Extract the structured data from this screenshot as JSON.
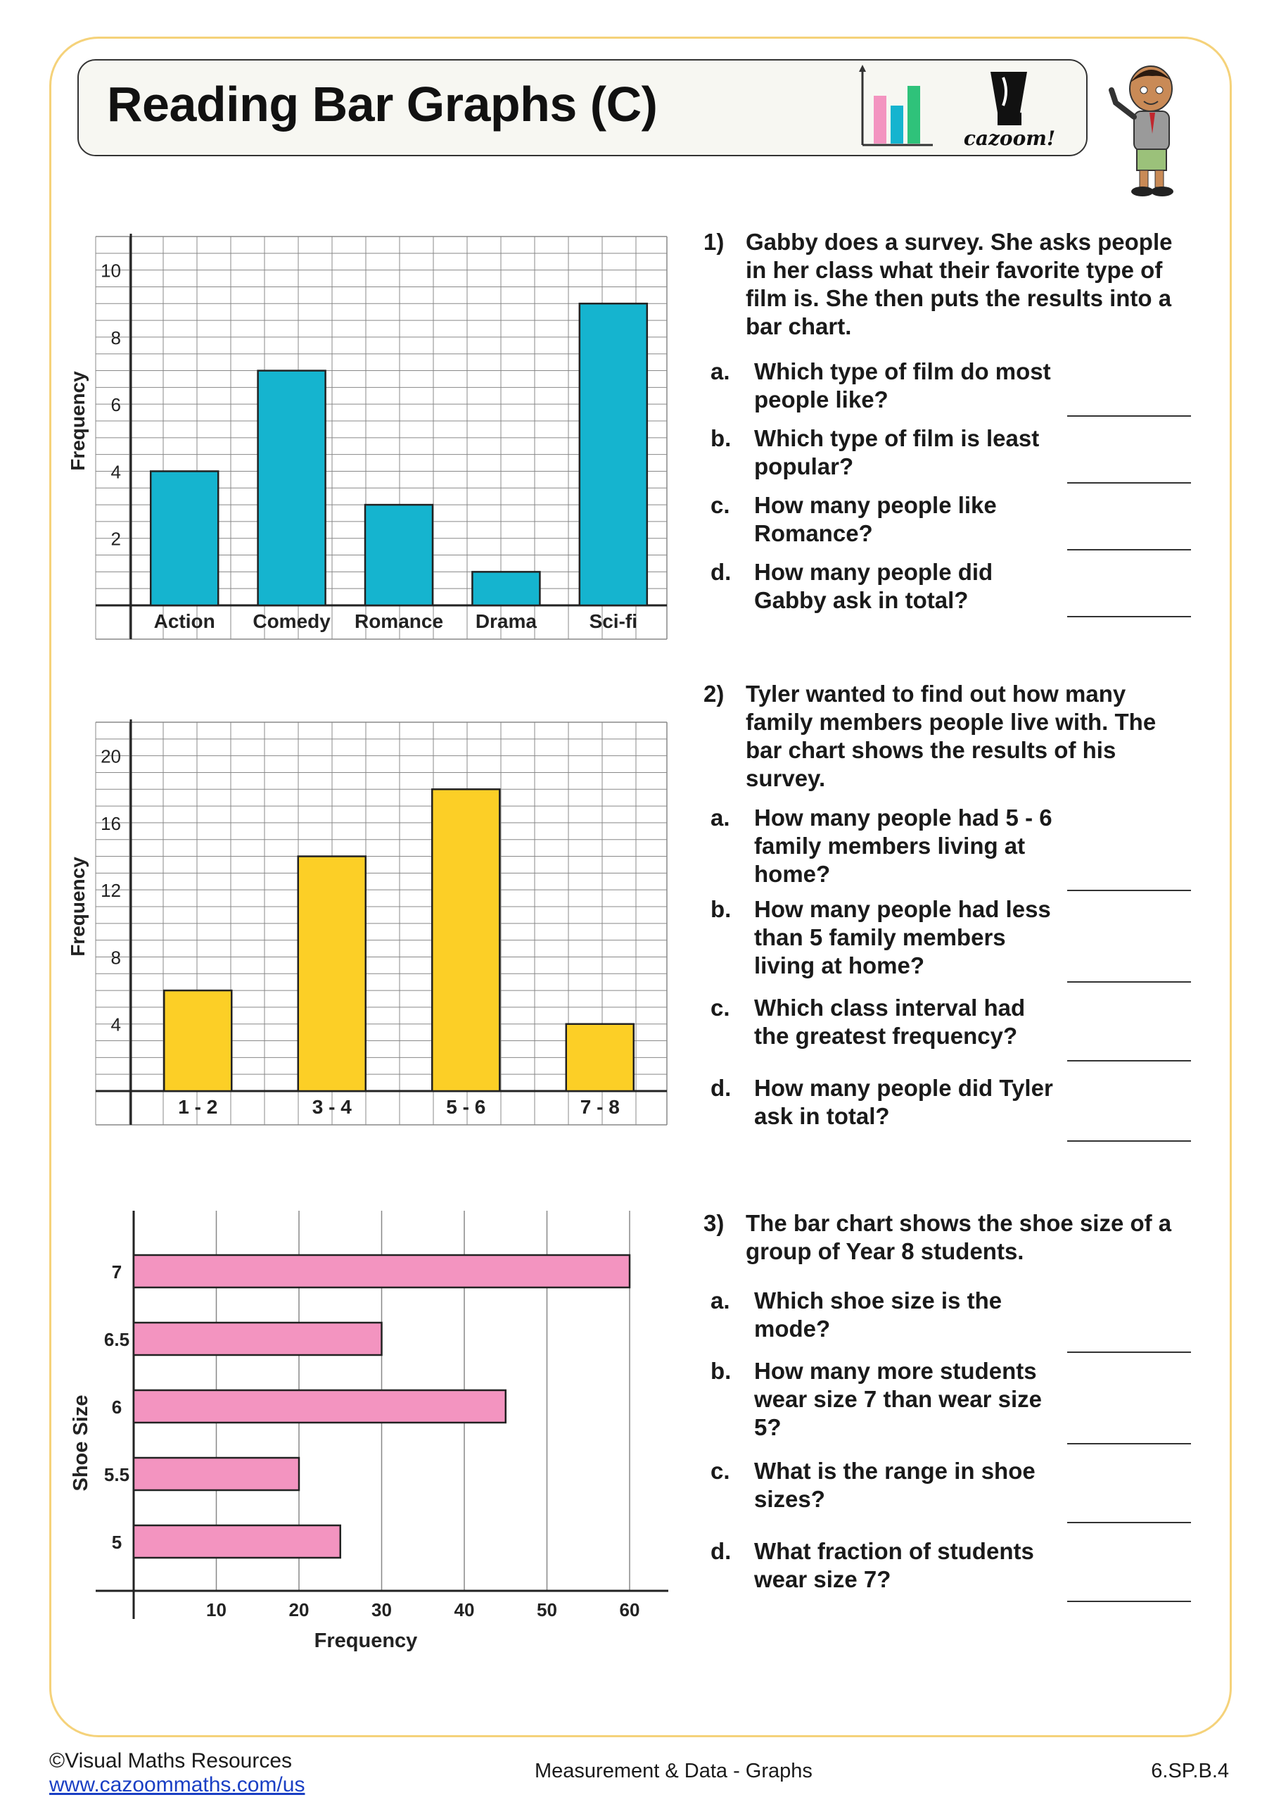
{
  "header": {
    "title": "Reading Bar Graphs (C)",
    "logo_text": "cazoom!"
  },
  "chart_data": [
    {
      "type": "bar",
      "orientation": "vertical",
      "categories": [
        "Action",
        "Comedy",
        "Romance",
        "Drama",
        "Sci-fi"
      ],
      "values": [
        4,
        7,
        3,
        1,
        9
      ],
      "ylabel": "Frequency",
      "ylim": [
        0,
        11
      ],
      "yticks": [
        2,
        4,
        6,
        8,
        10
      ],
      "grid": true,
      "color": "#15b4cf"
    },
    {
      "type": "bar",
      "orientation": "vertical",
      "categories": [
        "1 - 2",
        "3 - 4",
        "5 - 6",
        "7 - 8"
      ],
      "values": [
        6,
        14,
        18,
        4
      ],
      "ylabel": "Frequency",
      "ylim": [
        0,
        22
      ],
      "yticks": [
        4,
        8,
        12,
        16,
        20
      ],
      "grid": true,
      "color": "#fccf26"
    },
    {
      "type": "bar",
      "orientation": "horizontal",
      "categories": [
        "5",
        "5.5",
        "6",
        "6.5",
        "7"
      ],
      "values": [
        25,
        20,
        45,
        30,
        60
      ],
      "xlabel": "Frequency",
      "ylabel": "Shoe Size",
      "xlim": [
        0,
        65
      ],
      "xticks": [
        10,
        20,
        30,
        40,
        50,
        60
      ],
      "grid": true,
      "color": "#f394c0"
    }
  ],
  "questions": [
    {
      "number": "1)",
      "text": "Gabby does a survey. She asks people in her class what their favorite type of film is. She then puts the results into a bar chart.",
      "parts": [
        {
          "letter": "a.",
          "text": "Which type of film do most people like?"
        },
        {
          "letter": "b.",
          "text": "Which type of film is least popular?"
        },
        {
          "letter": "c.",
          "text": "How many people like Romance?"
        },
        {
          "letter": "d.",
          "text": "How many people did Gabby ask in total?"
        }
      ]
    },
    {
      "number": "2)",
      "text": "Tyler wanted to find out how many family members people live with. The bar chart shows the results of his survey.",
      "parts": [
        {
          "letter": "a.",
          "text": "How many people had 5 - 6 family members living at home?"
        },
        {
          "letter": "b.",
          "text": "How many people had less than 5 family members living at home?"
        },
        {
          "letter": "c.",
          "text": "Which class interval had the greatest frequency?"
        },
        {
          "letter": "d.",
          "text": "How many people did Tyler ask in total?"
        }
      ]
    },
    {
      "number": "3)",
      "text": "The bar chart shows the shoe size of a group of Year 8 students.",
      "parts": [
        {
          "letter": "a.",
          "text": "Which shoe size is the mode?"
        },
        {
          "letter": "b.",
          "text": "How many more students wear size 7 than wear size 5?"
        },
        {
          "letter": "c.",
          "text": "What is the range in shoe sizes?"
        },
        {
          "letter": "d.",
          "text": "What fraction of students wear size 7?"
        }
      ]
    }
  ],
  "footer": {
    "copyright": "©Visual Maths Resources",
    "url": "www.cazoommaths.com/us",
    "center": "Measurement & Data - Graphs",
    "code": "6.SP.B.4"
  }
}
